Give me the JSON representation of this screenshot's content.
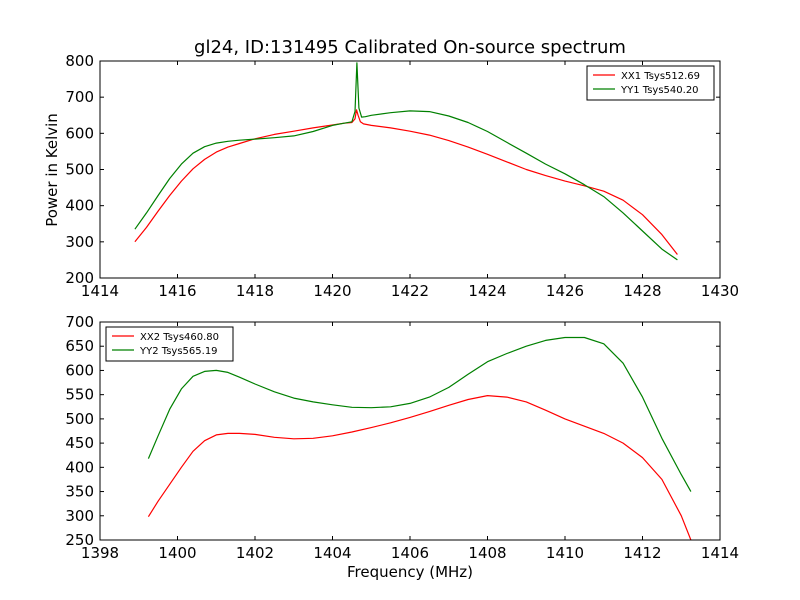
{
  "colors": {
    "red": "#ff0000",
    "green": "#008000"
  },
  "chart_data": [
    {
      "type": "line",
      "title": "gl24, ID:131495 Calibrated On-source spectrum",
      "xlabel": "",
      "ylabel": "Power in Kelvin",
      "xlim": [
        1414,
        1430
      ],
      "ylim": [
        200,
        800
      ],
      "xticks": [
        1414,
        1416,
        1418,
        1420,
        1422,
        1424,
        1426,
        1428,
        1430
      ],
      "yticks": [
        200,
        300,
        400,
        500,
        600,
        700,
        800
      ],
      "legend_position": "top-right",
      "series": [
        {
          "name": "XX1 Tsys512.69",
          "color": "red",
          "x": [
            1414.9,
            1415.2,
            1415.5,
            1415.8,
            1416.1,
            1416.4,
            1416.7,
            1417.0,
            1417.3,
            1417.6,
            1418.0,
            1418.5,
            1419.0,
            1419.5,
            1420.0,
            1420.3,
            1420.5,
            1420.58,
            1420.62,
            1420.66,
            1420.72,
            1420.8,
            1421.0,
            1421.5,
            1422.0,
            1422.5,
            1423.0,
            1423.5,
            1424.0,
            1424.5,
            1425.0,
            1425.5,
            1426.0,
            1426.5,
            1427.0,
            1427.5,
            1428.0,
            1428.5,
            1428.9
          ],
          "y": [
            300,
            340,
            385,
            428,
            468,
            502,
            528,
            548,
            562,
            572,
            585,
            597,
            606,
            615,
            623,
            628,
            630,
            640,
            665,
            650,
            632,
            626,
            622,
            615,
            606,
            595,
            580,
            562,
            542,
            521,
            500,
            483,
            468,
            455,
            440,
            415,
            375,
            320,
            265
          ]
        },
        {
          "name": "YY1 Tsys540.20",
          "color": "green",
          "x": [
            1414.9,
            1415.2,
            1415.5,
            1415.8,
            1416.1,
            1416.4,
            1416.7,
            1417.0,
            1417.3,
            1417.6,
            1418.0,
            1418.5,
            1419.0,
            1419.5,
            1420.0,
            1420.3,
            1420.5,
            1420.58,
            1420.63,
            1420.68,
            1420.75,
            1420.85,
            1421.0,
            1421.5,
            1422.0,
            1422.5,
            1423.0,
            1423.5,
            1424.0,
            1424.5,
            1425.0,
            1425.5,
            1426.0,
            1426.5,
            1427.0,
            1427.5,
            1428.0,
            1428.5,
            1428.9
          ],
          "y": [
            335,
            380,
            428,
            475,
            515,
            545,
            563,
            573,
            578,
            581,
            584,
            588,
            593,
            605,
            622,
            628,
            632,
            660,
            795,
            670,
            645,
            646,
            650,
            657,
            662,
            660,
            648,
            630,
            605,
            575,
            545,
            515,
            488,
            458,
            425,
            380,
            330,
            280,
            250
          ]
        }
      ]
    },
    {
      "type": "line",
      "title": "",
      "xlabel": "Frequency (MHz)",
      "ylabel": "",
      "xlim": [
        1398,
        1414
      ],
      "ylim": [
        250,
        700
      ],
      "xticks": [
        1398,
        1400,
        1402,
        1404,
        1406,
        1408,
        1410,
        1412,
        1414
      ],
      "yticks": [
        250,
        300,
        350,
        400,
        450,
        500,
        550,
        600,
        650,
        700
      ],
      "legend_position": "top-left",
      "series": [
        {
          "name": "XX2 Tsys460.80",
          "color": "red",
          "x": [
            1399.25,
            1399.5,
            1399.8,
            1400.1,
            1400.4,
            1400.7,
            1401.0,
            1401.3,
            1401.6,
            1402.0,
            1402.5,
            1403.0,
            1403.5,
            1404.0,
            1404.5,
            1405.0,
            1405.5,
            1406.0,
            1406.5,
            1407.0,
            1407.5,
            1408.0,
            1408.5,
            1409.0,
            1409.5,
            1410.0,
            1410.5,
            1411.0,
            1411.5,
            1412.0,
            1412.5,
            1413.0,
            1413.25
          ],
          "y": [
            298,
            330,
            365,
            400,
            433,
            455,
            467,
            470,
            470,
            468,
            462,
            459,
            460,
            465,
            473,
            482,
            492,
            503,
            515,
            528,
            540,
            548,
            545,
            535,
            518,
            500,
            485,
            470,
            450,
            420,
            375,
            300,
            250
          ]
        },
        {
          "name": "YY2 Tsys565.19",
          "color": "green",
          "x": [
            1399.25,
            1399.5,
            1399.8,
            1400.1,
            1400.4,
            1400.7,
            1401.0,
            1401.3,
            1401.6,
            1402.0,
            1402.5,
            1403.0,
            1403.5,
            1404.0,
            1404.5,
            1405.0,
            1405.5,
            1406.0,
            1406.5,
            1407.0,
            1407.5,
            1408.0,
            1408.5,
            1409.0,
            1409.5,
            1410.0,
            1410.5,
            1411.0,
            1411.5,
            1412.0,
            1412.5,
            1413.0,
            1413.25
          ],
          "y": [
            418,
            465,
            520,
            562,
            588,
            598,
            600,
            596,
            586,
            572,
            556,
            543,
            535,
            529,
            524,
            523,
            525,
            532,
            545,
            565,
            592,
            618,
            635,
            650,
            662,
            668,
            668,
            655,
            615,
            545,
            460,
            385,
            350
          ]
        }
      ]
    }
  ]
}
